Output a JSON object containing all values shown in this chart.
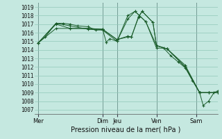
{
  "xlabel": "Pression niveau de la mer( hPa )",
  "bg_color": "#c5e8e0",
  "grid_color": "#90c8b8",
  "line_color": "#1a5c2a",
  "vline_color": "#3a3a4a",
  "ylim": [
    1006.5,
    1019.5
  ],
  "yticks": [
    1007,
    1008,
    1009,
    1010,
    1011,
    1012,
    1013,
    1014,
    1015,
    1016,
    1017,
    1018,
    1019
  ],
  "day_labels": [
    "Mer",
    "Dim",
    "Jeu",
    "Ven",
    "Sam"
  ],
  "day_positions": [
    0,
    36,
    44,
    66,
    88
  ],
  "xlim": [
    -2,
    100
  ],
  "series": [
    [
      [
        0,
        1014.8
      ],
      [
        4,
        1015.5
      ],
      [
        10,
        1017.1
      ],
      [
        14,
        1017.1
      ],
      [
        18,
        1017.0
      ],
      [
        22,
        1016.8
      ],
      [
        28,
        1016.7
      ],
      [
        32,
        1016.3
      ],
      [
        36,
        1016.4
      ],
      [
        38,
        1014.9
      ],
      [
        40,
        1015.3
      ],
      [
        44,
        1015.0
      ],
      [
        50,
        1018.0
      ],
      [
        54,
        1018.5
      ],
      [
        60,
        1017.3
      ],
      [
        66,
        1014.2
      ],
      [
        70,
        1014.2
      ],
      [
        74,
        1013.3
      ],
      [
        78,
        1012.6
      ],
      [
        82,
        1011.9
      ],
      [
        86,
        1010.4
      ],
      [
        90,
        1009.0
      ],
      [
        92,
        1007.5
      ],
      [
        95,
        1008.0
      ],
      [
        98,
        1009.0
      ],
      [
        100,
        1009.2
      ]
    ],
    [
      [
        0,
        1014.8
      ],
      [
        10,
        1017.1
      ],
      [
        18,
        1016.8
      ],
      [
        28,
        1016.4
      ],
      [
        36,
        1016.3
      ],
      [
        44,
        1015.0
      ],
      [
        50,
        1017.6
      ],
      [
        54,
        1018.5
      ],
      [
        60,
        1017.3
      ],
      [
        66,
        1014.5
      ],
      [
        72,
        1014.1
      ],
      [
        82,
        1012.2
      ],
      [
        90,
        1009.0
      ],
      [
        95,
        1009.0
      ],
      [
        100,
        1009.0
      ]
    ],
    [
      [
        0,
        1014.8
      ],
      [
        10,
        1017.0
      ],
      [
        18,
        1016.5
      ],
      [
        28,
        1016.5
      ],
      [
        36,
        1016.4
      ],
      [
        44,
        1015.2
      ],
      [
        50,
        1015.6
      ],
      [
        52,
        1015.5
      ],
      [
        56,
        1017.9
      ],
      [
        58,
        1018.5
      ],
      [
        64,
        1017.2
      ],
      [
        66,
        1014.5
      ],
      [
        72,
        1014.1
      ],
      [
        82,
        1012.0
      ],
      [
        90,
        1009.0
      ],
      [
        95,
        1009.0
      ],
      [
        100,
        1009.0
      ]
    ],
    [
      [
        0,
        1014.8
      ],
      [
        10,
        1016.5
      ],
      [
        18,
        1016.5
      ],
      [
        28,
        1016.5
      ],
      [
        36,
        1016.4
      ],
      [
        44,
        1015.2
      ],
      [
        50,
        1015.5
      ],
      [
        52,
        1015.5
      ],
      [
        56,
        1017.8
      ],
      [
        58,
        1018.5
      ],
      [
        64,
        1017.2
      ],
      [
        66,
        1014.5
      ],
      [
        72,
        1014.1
      ],
      [
        82,
        1012.0
      ],
      [
        90,
        1009.0
      ],
      [
        95,
        1009.0
      ],
      [
        100,
        1009.0
      ]
    ]
  ]
}
